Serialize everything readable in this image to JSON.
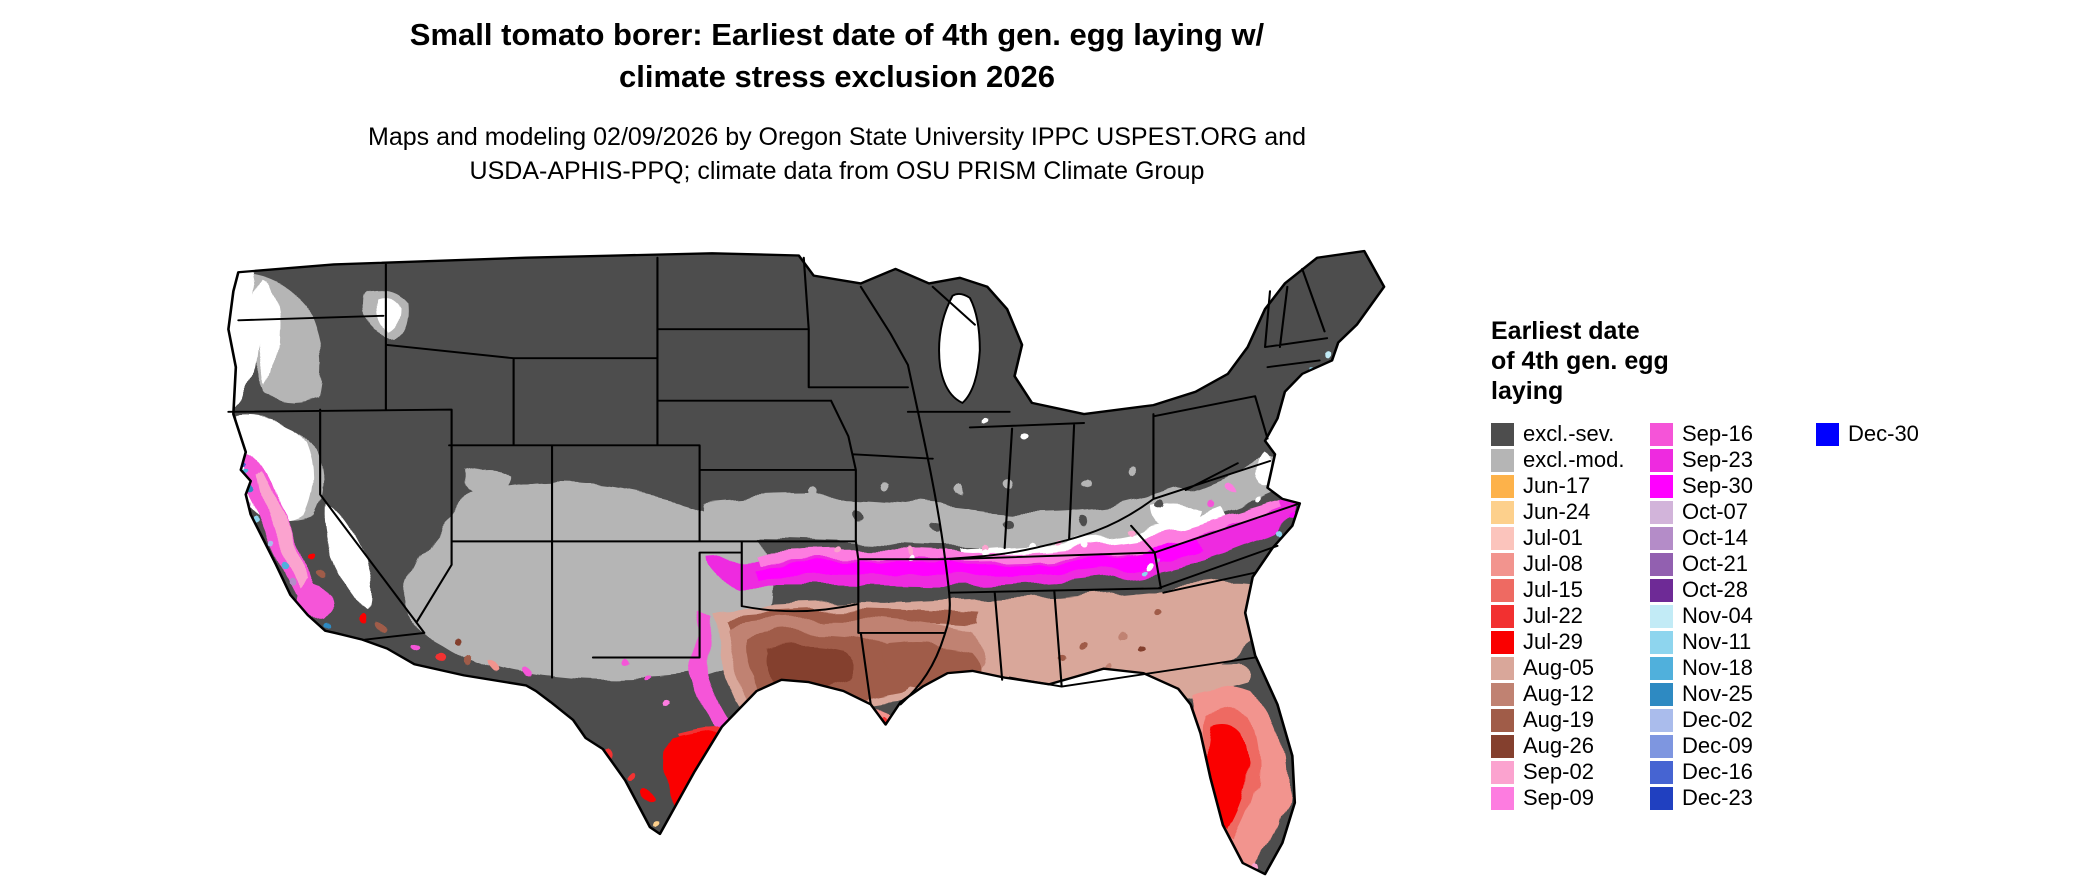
{
  "title": {
    "line1": "Small tomato borer: Earliest date of 4th gen. egg laying w/",
    "line2": "climate stress exclusion 2026"
  },
  "subtitle": {
    "line1": "Maps and modeling 02/09/2026 by Oregon State University IPPC USPEST.ORG and",
    "line2": "USDA-APHIS-PPQ; climate data from OSU PRISM Climate Group"
  },
  "legend": {
    "title_lines": [
      "Earliest date",
      "of 4th gen. egg",
      "laying"
    ],
    "columns": [
      [
        {
          "label": "excl.-sev.",
          "color_key": "excl_sev"
        },
        {
          "label": "excl.-mod.",
          "color_key": "excl_mod"
        },
        {
          "label": "Jun-17",
          "color_key": "jun17"
        },
        {
          "label": "Jun-24",
          "color_key": "jun24"
        },
        {
          "label": "Jul-01",
          "color_key": "jul01"
        },
        {
          "label": "Jul-08",
          "color_key": "jul08"
        },
        {
          "label": "Jul-15",
          "color_key": "jul15"
        },
        {
          "label": "Jul-22",
          "color_key": "jul22"
        },
        {
          "label": "Jul-29",
          "color_key": "jul29"
        },
        {
          "label": "Aug-05",
          "color_key": "aug05"
        },
        {
          "label": "Aug-12",
          "color_key": "aug12"
        },
        {
          "label": "Aug-19",
          "color_key": "aug19"
        },
        {
          "label": "Aug-26",
          "color_key": "aug26"
        },
        {
          "label": "Sep-02",
          "color_key": "sep02"
        },
        {
          "label": "Sep-09",
          "color_key": "sep09"
        }
      ],
      [
        {
          "label": "Sep-16",
          "color_key": "sep16"
        },
        {
          "label": "Sep-23",
          "color_key": "sep23"
        },
        {
          "label": "Sep-30",
          "color_key": "sep30"
        },
        {
          "label": "Oct-07",
          "color_key": "oct07"
        },
        {
          "label": "Oct-14",
          "color_key": "oct14"
        },
        {
          "label": "Oct-21",
          "color_key": "oct21"
        },
        {
          "label": "Oct-28",
          "color_key": "oct28"
        },
        {
          "label": "Nov-04",
          "color_key": "nov04"
        },
        {
          "label": "Nov-11",
          "color_key": "nov11"
        },
        {
          "label": "Nov-18",
          "color_key": "nov18"
        },
        {
          "label": "Nov-25",
          "color_key": "nov25"
        },
        {
          "label": "Dec-02",
          "color_key": "dec02"
        },
        {
          "label": "Dec-09",
          "color_key": "dec09"
        },
        {
          "label": "Dec-16",
          "color_key": "dec16"
        },
        {
          "label": "Dec-23",
          "color_key": "dec23"
        }
      ],
      [
        {
          "label": "Dec-30",
          "color_key": "dec30"
        }
      ]
    ]
  },
  "palette": {
    "excl_sev": "#4d4d4d",
    "excl_mod": "#b5b5b5",
    "jun17": "#fdb24a",
    "jun24": "#fdd08c",
    "jul01": "#fbc4bc",
    "jul08": "#f2948e",
    "jul15": "#ee6a62",
    "jul22": "#f23030",
    "jul29": "#fa0000",
    "aug05": "#d9a79a",
    "aug12": "#c08272",
    "aug19": "#a05c48",
    "aug26": "#84402e",
    "sep02": "#fba3cf",
    "sep09": "#fd7ce0",
    "sep16": "#f554d8",
    "sep23": "#ee2ae0",
    "sep30": "#ff00ff",
    "oct07": "#d2b4da",
    "oct14": "#b48cc8",
    "oct21": "#9260b0",
    "oct28": "#6e2a96",
    "nov04": "#c2ebf6",
    "nov11": "#8ed5ee",
    "nov18": "#50b0dc",
    "nov25": "#2e8ac2",
    "dec02": "#aabcec",
    "dec09": "#7e96e0",
    "dec16": "#4664d2",
    "dec23": "#2040c0",
    "dec30": "#0000ff"
  }
}
